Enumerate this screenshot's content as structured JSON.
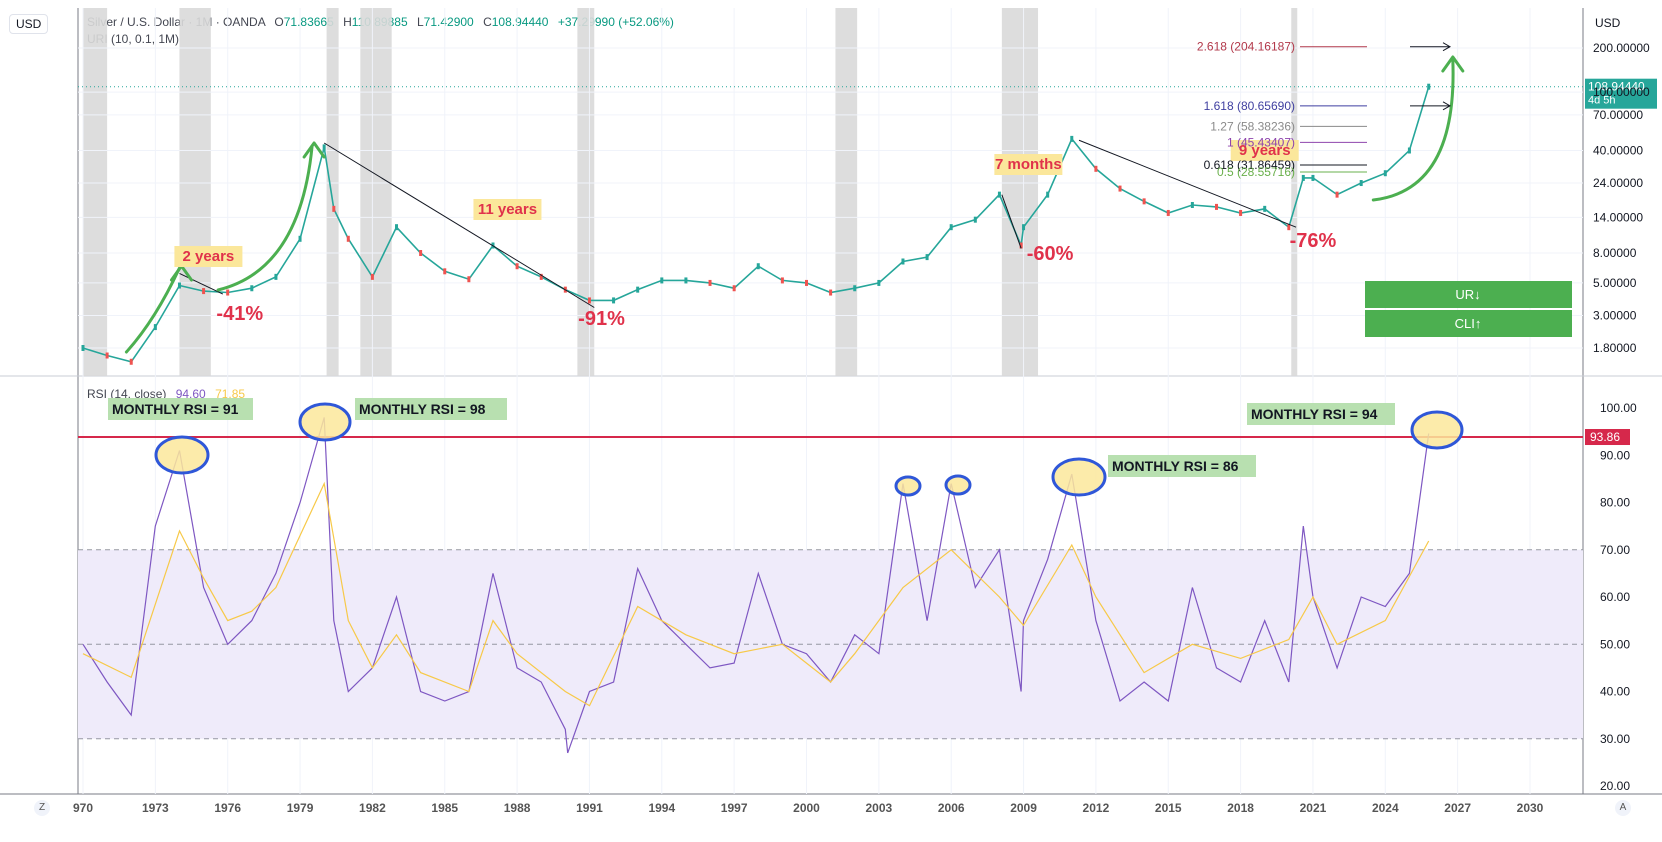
{
  "header": {
    "symbol": "Silver / U.S. Dollar · 1M · OANDA",
    "open_label": "O",
    "open": "71.83665",
    "high_label": "H",
    "high": "110.89885",
    "low_label": "L",
    "low": "71.42900",
    "close_label": "C",
    "close": "108.94440",
    "change": "+37.29990 (+52.06%)",
    "indicator": "URI (10, 0.1, 1M)"
  },
  "currency_left": "USD",
  "currency_right": "USD",
  "price_tag": {
    "value": "108.94440",
    "countdown": "4d 5h"
  },
  "rsi_header": {
    "label": "RSI (14, close)",
    "rsi_value": "94.60",
    "ma_value": "71.85"
  },
  "rsi_level_tag": "93.86",
  "bottom_left_button": "Z",
  "bottom_right_button": "A",
  "colors": {
    "up": "#26a69a",
    "down": "#ef5350",
    "rsi": "#7e57c2",
    "rsi_ma": "#f7c948",
    "arrow": "#4caf50",
    "annotation_red": "#e0324b",
    "rsi_band": "#efebfa",
    "signal_green": "#4caf50"
  },
  "chart_data": [
    {
      "type": "line",
      "title": "Silver / U.S. Dollar · 1M · OANDA",
      "y_scale": "log",
      "ylim": [
        1.3,
        250
      ],
      "x_range": [
        1970,
        2032
      ],
      "x_ticks": [
        "970",
        "1973",
        "1976",
        "1979",
        "1982",
        "1985",
        "1988",
        "1991",
        "1994",
        "1997",
        "2000",
        "2003",
        "2006",
        "2009",
        "2012",
        "2015",
        "2018",
        "2021",
        "2024",
        "2027",
        "2030"
      ],
      "y_ticks": [
        "200.00000",
        "100.00000",
        "70.00000",
        "40.00000",
        "24.00000",
        "14.00000",
        "8.00000",
        "5.00000",
        "3.00000",
        "1.80000"
      ],
      "series": [
        {
          "values": [
            [
              1970,
              1.8
            ],
            [
              1971,
              1.6
            ],
            [
              1972,
              1.45
            ],
            [
              1973,
              2.5
            ],
            [
              1974,
              4.8
            ],
            [
              1975,
              4.4
            ],
            [
              1976,
              4.3
            ],
            [
              1977,
              4.6
            ],
            [
              1978,
              5.5
            ],
            [
              1979,
              10
            ],
            [
              1980,
              42
            ],
            [
              1980.4,
              16
            ],
            [
              1981,
              10
            ],
            [
              1982,
              5.5
            ],
            [
              1983,
              12
            ],
            [
              1984,
              8
            ],
            [
              1985,
              6
            ],
            [
              1986,
              5.3
            ],
            [
              1987,
              9
            ],
            [
              1988,
              6.5
            ],
            [
              1989,
              5.5
            ],
            [
              1990,
              4.5
            ],
            [
              1991,
              3.8
            ],
            [
              1992,
              3.8
            ],
            [
              1993,
              4.5
            ],
            [
              1994,
              5.2
            ],
            [
              1995,
              5.2
            ],
            [
              1996,
              5
            ],
            [
              1997,
              4.6
            ],
            [
              1998,
              6.5
            ],
            [
              1999,
              5.2
            ],
            [
              2000,
              5
            ],
            [
              2001,
              4.3
            ],
            [
              2002,
              4.6
            ],
            [
              2003,
              5
            ],
            [
              2004,
              7
            ],
            [
              2005,
              7.5
            ],
            [
              2006,
              12
            ],
            [
              2007,
              13.5
            ],
            [
              2008,
              20
            ],
            [
              2008.9,
              9
            ],
            [
              2009,
              12
            ],
            [
              2010,
              20
            ],
            [
              2011,
              48
            ],
            [
              2012,
              30
            ],
            [
              2013,
              22
            ],
            [
              2014,
              18
            ],
            [
              2015,
              15
            ],
            [
              2016,
              17
            ],
            [
              2017,
              16.5
            ],
            [
              2018,
              15
            ],
            [
              2019,
              16
            ],
            [
              2020,
              12
            ],
            [
              2020.6,
              26
            ],
            [
              2021,
              26
            ],
            [
              2022,
              20
            ],
            [
              2023,
              24
            ],
            [
              2024,
              28
            ],
            [
              2025,
              40
            ],
            [
              2025.8,
              108.94
            ]
          ]
        }
      ],
      "annotations": {
        "periods": [
          "2 years",
          "11 years",
          "7 months",
          "9 years"
        ],
        "drawdowns": [
          "-41%",
          "-91%",
          "-60%",
          "-76%"
        ],
        "fib_levels": [
          "2.618 (204.16187)",
          "1.618 (80.65690)",
          "1.27 (58.38236)",
          "1 (45.43407)",
          "0.618 (31.86459)",
          "0.5 (28.55716)"
        ],
        "signals": [
          "UR↓",
          "CLI↑"
        ]
      }
    },
    {
      "type": "line",
      "title": "RSI (14, close)",
      "ylim": [
        18,
        106
      ],
      "y_ticks": [
        "100.00",
        "90.00",
        "80.00",
        "70.00",
        "60.00",
        "50.00",
        "40.00",
        "30.00",
        "20.00"
      ],
      "band": [
        30,
        70
      ],
      "series": [
        {
          "values": [
            [
              1970,
              50
            ],
            [
              1971,
              42
            ],
            [
              1972,
              35
            ],
            [
              1973,
              75
            ],
            [
              1974,
              91
            ],
            [
              1975,
              62
            ],
            [
              1976,
              50
            ],
            [
              1977,
              55
            ],
            [
              1978,
              65
            ],
            [
              1979,
              80
            ],
            [
              1980,
              98
            ],
            [
              1980.4,
              55
            ],
            [
              1981,
              40
            ],
            [
              1982,
              45
            ],
            [
              1983,
              60
            ],
            [
              1984,
              40
            ],
            [
              1985,
              38
            ],
            [
              1986,
              40
            ],
            [
              1987,
              65
            ],
            [
              1988,
              45
            ],
            [
              1989,
              42
            ],
            [
              1990,
              32
            ],
            [
              1990.1,
              27
            ],
            [
              1991,
              40
            ],
            [
              1992,
              42
            ],
            [
              1993,
              66
            ],
            [
              1994,
              55
            ],
            [
              1995,
              50
            ],
            [
              1996,
              45
            ],
            [
              1997,
              46
            ],
            [
              1998,
              65
            ],
            [
              1999,
              50
            ],
            [
              2000,
              48
            ],
            [
              2001,
              42
            ],
            [
              2002,
              52
            ],
            [
              2003,
              48
            ],
            [
              2004,
              84
            ],
            [
              2005,
              55
            ],
            [
              2006,
              84
            ],
            [
              2007,
              62
            ],
            [
              2008,
              70
            ],
            [
              2008.9,
              40
            ],
            [
              2009,
              55
            ],
            [
              2010,
              68
            ],
            [
              2011,
              86
            ],
            [
              2012,
              55
            ],
            [
              2013,
              38
            ],
            [
              2014,
              42
            ],
            [
              2015,
              38
            ],
            [
              2016,
              62
            ],
            [
              2017,
              45
            ],
            [
              2018,
              42
            ],
            [
              2019,
              55
            ],
            [
              2020,
              42
            ],
            [
              2020.6,
              75
            ],
            [
              2021,
              60
            ],
            [
              2022,
              45
            ],
            [
              2023,
              60
            ],
            [
              2024,
              58
            ],
            [
              2025,
              65
            ],
            [
              2025.8,
              94.6
            ]
          ]
        },
        {
          "values": [
            [
              1970,
              48
            ],
            [
              1972,
              43
            ],
            [
              1974,
              74
            ],
            [
              1975,
              64
            ],
            [
              1976,
              55
            ],
            [
              1977,
              57
            ],
            [
              1978,
              62
            ],
            [
              1980,
              84
            ],
            [
              1981,
              55
            ],
            [
              1982,
              45
            ],
            [
              1983,
              52
            ],
            [
              1984,
              44
            ],
            [
              1986,
              40
            ],
            [
              1987,
              55
            ],
            [
              1988,
              48
            ],
            [
              1990,
              40
            ],
            [
              1991,
              37
            ],
            [
              1993,
              58
            ],
            [
              1995,
              52
            ],
            [
              1997,
              48
            ],
            [
              1999,
              50
            ],
            [
              2001,
              42
            ],
            [
              2002,
              48
            ],
            [
              2004,
              62
            ],
            [
              2006,
              70
            ],
            [
              2008,
              60
            ],
            [
              2009,
              54
            ],
            [
              2011,
              71
            ],
            [
              2012,
              60
            ],
            [
              2014,
              44
            ],
            [
              2016,
              50
            ],
            [
              2018,
              47
            ],
            [
              2020,
              51
            ],
            [
              2021,
              60
            ],
            [
              2022,
              50
            ],
            [
              2024,
              55
            ],
            [
              2025.8,
              71.85
            ]
          ]
        }
      ],
      "annotations": [
        "MONTHLY RSI = 91",
        "MONTHLY RSI = 98",
        "MONTHLY RSI = 86",
        "MONTHLY RSI = 94"
      ],
      "reference_level": 93.86
    }
  ]
}
